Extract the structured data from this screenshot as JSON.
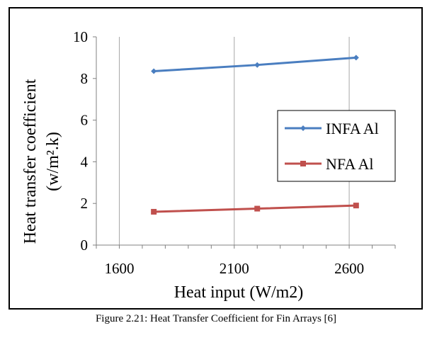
{
  "colors": {
    "series_1": "#4a7ec0",
    "series_2": "#c0504d",
    "axis": "#808080",
    "text": "#000000"
  },
  "chart_data": {
    "type": "line",
    "title": "",
    "xlabel": "Heat input (W/m2)",
    "ylabel_line1": "Heat transfer coefficient",
    "ylabel_line2": "(w/m².k)",
    "xlim": [
      1500,
      2800
    ],
    "ylim": [
      0,
      10
    ],
    "x_ticks": [
      1600,
      2100,
      2600
    ],
    "x_tick_labels": [
      "1600",
      "2100",
      "2600"
    ],
    "y_ticks": [
      0,
      2,
      4,
      6,
      8,
      10
    ],
    "y_tick_labels": [
      "0",
      "2",
      "4",
      "6",
      "8",
      "10"
    ],
    "grid": true,
    "legend_position": "right",
    "series": [
      {
        "name": "INFA Al",
        "marker": "diamond",
        "color": "#4a7ec0",
        "x": [
          1750,
          2200,
          2630
        ],
        "y": [
          8.35,
          8.65,
          9.0
        ]
      },
      {
        "name": "NFA Al",
        "marker": "square",
        "color": "#c0504d",
        "x": [
          1750,
          2200,
          2630
        ],
        "y": [
          1.6,
          1.75,
          1.9
        ]
      }
    ]
  },
  "caption": "Figure 2.21: Heat Transfer Coefficient for Fin Arrays [6]"
}
